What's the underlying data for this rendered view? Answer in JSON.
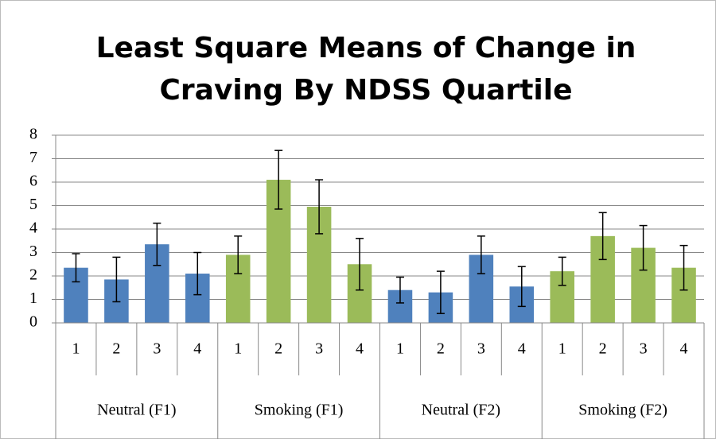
{
  "chart_data": {
    "type": "bar",
    "title": "Least Square Means of Change in Craving By NDSS Quartile",
    "groups": [
      {
        "name": "Neutral (F1)",
        "color": "#4f81bd",
        "categories": [
          "1",
          "2",
          "3",
          "4"
        ],
        "values": [
          2.35,
          1.85,
          3.35,
          2.1
        ],
        "errors": [
          0.6,
          0.95,
          0.9,
          0.9
        ]
      },
      {
        "name": "Smoking (F1)",
        "color": "#9bbb59",
        "categories": [
          "1",
          "2",
          "3",
          "4"
        ],
        "values": [
          2.9,
          6.1,
          4.95,
          2.5
        ],
        "errors": [
          0.8,
          1.25,
          1.15,
          1.1
        ]
      },
      {
        "name": "Neutral (F2)",
        "color": "#4f81bd",
        "categories": [
          "1",
          "2",
          "3",
          "4"
        ],
        "values": [
          1.4,
          1.3,
          2.9,
          1.55
        ],
        "errors": [
          0.55,
          0.9,
          0.8,
          0.85
        ]
      },
      {
        "name": "Smoking (F2)",
        "color": "#9bbb59",
        "categories": [
          "1",
          "2",
          "3",
          "4"
        ],
        "values": [
          2.2,
          3.7,
          3.2,
          2.35
        ],
        "errors": [
          0.6,
          1.0,
          0.95,
          0.95
        ]
      }
    ],
    "ylim": [
      0,
      8
    ],
    "yticks": [
      0,
      1,
      2,
      3,
      4,
      5,
      6,
      7,
      8
    ],
    "grid": true
  }
}
